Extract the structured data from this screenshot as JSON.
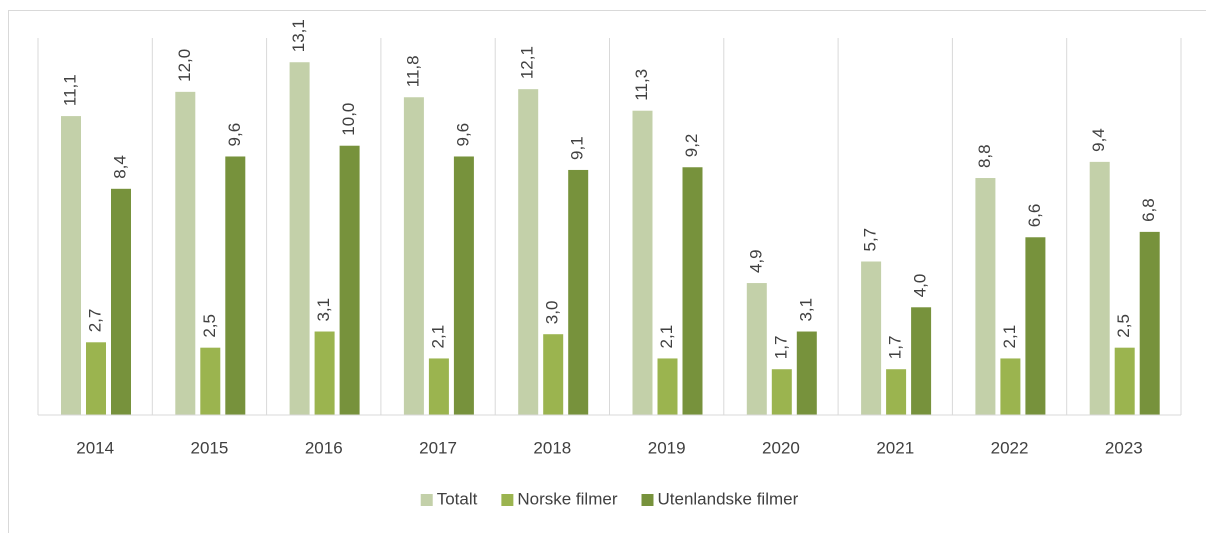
{
  "chart_data": {
    "type": "bar",
    "categories": [
      "2014",
      "2015",
      "2016",
      "2017",
      "2018",
      "2019",
      "2020",
      "2021",
      "2022",
      "2023"
    ],
    "series": [
      {
        "name": "Totalt",
        "color": "#c3d0a9",
        "values": [
          11.1,
          12.0,
          13.1,
          11.8,
          12.1,
          11.3,
          4.9,
          5.7,
          8.8,
          9.4
        ],
        "value_labels": [
          "11,1",
          "12,0",
          "13,1",
          "11,8",
          "12,1",
          "11,3",
          "4,9",
          "5,7",
          "8,8",
          "9,4"
        ]
      },
      {
        "name": "Norske filmer",
        "color": "#9bb44f",
        "values": [
          2.7,
          2.5,
          3.1,
          2.1,
          3.0,
          2.1,
          1.7,
          1.7,
          2.1,
          2.5
        ],
        "value_labels": [
          "2,7",
          "2,5",
          "3,1",
          "2,1",
          "3,0",
          "2,1",
          "1,7",
          "1,7",
          "2,1",
          "2,5"
        ]
      },
      {
        "name": "Utenlandske filmer",
        "color": "#77923c",
        "values": [
          8.4,
          9.6,
          10.0,
          9.6,
          9.1,
          9.2,
          3.1,
          4.0,
          6.6,
          6.8
        ],
        "value_labels": [
          "8,4",
          "9,6",
          "10,0",
          "9,6",
          "9,1",
          "9,2",
          "3,1",
          "4,0",
          "6,6",
          "6,8"
        ]
      }
    ],
    "ylim": [
      0,
      14
    ],
    "legend": "bottom"
  }
}
